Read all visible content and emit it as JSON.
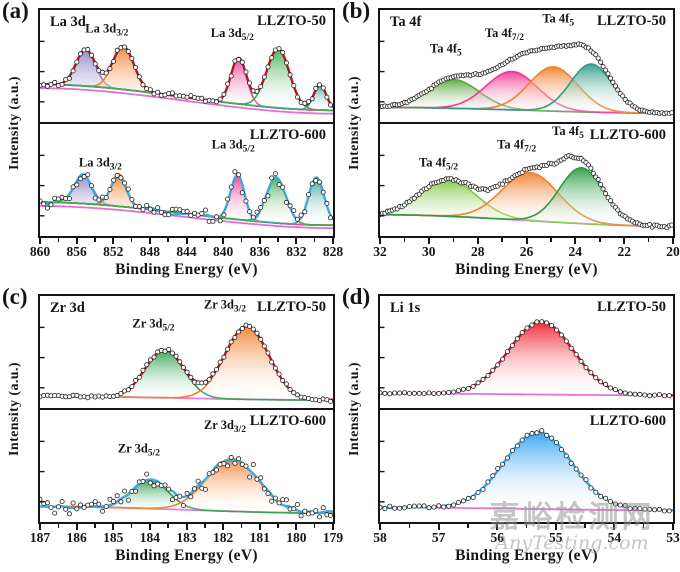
{
  "watermark": {
    "line1": "嘉峪检测网",
    "line2": "AnyTesting.com"
  },
  "samples": [
    "LLZTO-50",
    "LLZTO-600"
  ],
  "chart_data": [
    {
      "type": "area",
      "panel_letter": "(a)",
      "core_label": "La 3d",
      "xlabel": "Binding Energy (eV)",
      "ylabel": "Intensity (a.u.)",
      "x_range": [
        860,
        828
      ],
      "x_ticks": [
        860,
        856,
        852,
        848,
        844,
        840,
        836,
        832,
        828
      ],
      "subpanels": [
        {
          "sample": "LLZTO-50",
          "envelope_color": "#b01620",
          "envelope_wiggle": 0.004,
          "point_noise": 0.016,
          "point_step": 3,
          "baselines": [
            {
              "color": "#4f9d49",
              "start": 0.34,
              "end": 0.07
            },
            {
              "color": "#e46ed6",
              "start": 0.3,
              "end": 0.035
            }
          ],
          "peaks": [
            {
              "center": 855.0,
              "sigma": 1.05,
              "amp": 0.38,
              "color": "#8d84c8"
            },
            {
              "center": 850.9,
              "sigma": 1.15,
              "amp": 0.45,
              "color": "#f28130"
            },
            {
              "center": 838.3,
              "sigma": 0.85,
              "amp": 0.48,
              "color": "#f03a94"
            },
            {
              "center": 829.4,
              "sigma": 0.7,
              "amp": 0.26,
              "color": "#2aa18e"
            },
            {
              "center": 834.0,
              "sigma": 1.25,
              "amp": 0.62,
              "color": "#3fae4c"
            }
          ],
          "annotations": [
            {
              "x": 852.7,
              "y": 0.8,
              "main": "La 3d",
              "sub": "3/2"
            },
            {
              "x": 839.0,
              "y": 0.76,
              "main": "La 3d",
              "sub": "5/2"
            }
          ]
        },
        {
          "sample": "LLZTO-600",
          "envelope_color": "#41a8d9",
          "envelope_wiggle": 0.035,
          "point_noise": 0.05,
          "point_step": 3,
          "baselines": [
            {
              "color": "#4f9d49",
              "start": 0.3,
              "end": 0.06
            },
            {
              "color": "#e46ed6",
              "start": 0.26,
              "end": 0.03
            }
          ],
          "peaks": [
            {
              "center": 855.3,
              "sigma": 1.0,
              "amp": 0.3,
              "color": "#8d84c8"
            },
            {
              "center": 851.4,
              "sigma": 0.85,
              "amp": 0.34,
              "color": "#f28130"
            },
            {
              "center": 838.4,
              "sigma": 0.75,
              "amp": 0.46,
              "color": "#f03a94"
            },
            {
              "center": 829.8,
              "sigma": 0.85,
              "amp": 0.5,
              "color": "#2aa18e"
            },
            {
              "center": 834.2,
              "sigma": 1.05,
              "amp": 0.48,
              "color": "#3fae4c"
            }
          ],
          "annotations": [
            {
              "x": 853.4,
              "y": 0.62,
              "main": "La 3d",
              "sub": "3/2"
            },
            {
              "x": 838.9,
              "y": 0.78,
              "main": "La 3d",
              "sub": "5/2"
            }
          ]
        }
      ]
    },
    {
      "type": "area",
      "panel_letter": "(b)",
      "core_label": "Ta 4f",
      "xlabel": "Binding Energy (eV)",
      "ylabel": "Intensity (a.u.)",
      "x_range": [
        32,
        20
      ],
      "x_ticks": [
        32,
        30,
        28,
        26,
        24,
        22,
        20
      ],
      "subpanels": [
        {
          "sample": "LLZTO-50",
          "envelope_color": "#b01620",
          "envelope_wiggle": 0.004,
          "point_noise": 0.007,
          "point_step": 2,
          "baselines": [
            {
              "color": "#e46ed6",
              "start": 0.1,
              "end": 0.04
            }
          ],
          "peaks": [
            {
              "center": 29.0,
              "sigma": 1.05,
              "amp": 0.3,
              "color": "#57a83c"
            },
            {
              "center": 26.6,
              "sigma": 1.05,
              "amp": 0.4,
              "color": "#f03a94"
            },
            {
              "center": 24.9,
              "sigma": 1.0,
              "amp": 0.46,
              "color": "#f28130"
            },
            {
              "center": 23.35,
              "sigma": 0.85,
              "amp": 0.5,
              "color": "#2f9e85"
            }
          ],
          "annotations": [
            {
              "x": 29.3,
              "y": 0.62,
              "main": "Ta 4f",
              "sub": "5"
            },
            {
              "x": 26.9,
              "y": 0.76,
              "main": "Ta 4f",
              "sub": "7/2"
            },
            {
              "x": 24.7,
              "y": 0.89,
              "main": "Ta 4f",
              "sub": "5"
            }
          ]
        },
        {
          "sample": "LLZTO-600",
          "envelope_wiggle": 0.012,
          "envelope_color": "#41a8d9",
          "point_noise": 0.01,
          "point_step": 2,
          "baselines": [
            {
              "color": "#e46ed6",
              "start": 0.17,
              "end": 0.05
            }
          ],
          "peaks": [
            {
              "center": 29.2,
              "sigma": 1.15,
              "amp": 0.38,
              "color": "#7fc93e"
            },
            {
              "center": 25.85,
              "sigma": 1.15,
              "amp": 0.5,
              "color": "#f28130"
            },
            {
              "center": 23.75,
              "sigma": 0.9,
              "amp": 0.58,
              "color": "#2d9c43"
            }
          ],
          "annotations": [
            {
              "x": 29.6,
              "y": 0.62,
              "main": "Ta 4f",
              "sub": "5/2"
            },
            {
              "x": 26.4,
              "y": 0.78,
              "main": "Ta 4f",
              "sub": "7/2"
            },
            {
              "x": 24.3,
              "y": 0.91,
              "main": "Ta 4f",
              "sub": "5"
            }
          ]
        }
      ]
    },
    {
      "type": "area",
      "panel_letter": "(c)",
      "core_label": "Zr 3d",
      "xlabel": "Binding Energy (eV)",
      "ylabel": "Intensity (a.u.)",
      "x_range": [
        187,
        179
      ],
      "x_ticks": [
        187,
        186,
        185,
        184,
        183,
        182,
        181,
        180,
        179
      ],
      "subpanels": [
        {
          "sample": "LLZTO-50",
          "envelope_color": "#b01620",
          "envelope_wiggle": 0.003,
          "point_noise": 0.012,
          "point_step": 3,
          "baselines": [
            {
              "color": "#e46ed6",
              "start": 0.07,
              "end": 0.03
            }
          ],
          "peaks": [
            {
              "center": 183.6,
              "sigma": 0.52,
              "amp": 0.5,
              "color": "#2f9e4f"
            },
            {
              "center": 181.35,
              "sigma": 0.6,
              "amp": 0.76,
              "color": "#f28130"
            }
          ],
          "annotations": [
            {
              "x": 183.9,
              "y": 0.72,
              "main": "Zr 3d",
              "sub": "5/2"
            },
            {
              "x": 181.95,
              "y": 0.89,
              "main": "Zr 3d",
              "sub": "3/2"
            }
          ]
        },
        {
          "sample": "LLZTO-600",
          "envelope_color": "#41a8d9",
          "envelope_wiggle": 0.03,
          "point_noise": 0.065,
          "point_step": 3,
          "baselines": [
            {
              "color": "#e46ed6",
              "start": 0.11,
              "end": 0.04
            }
          ],
          "peaks": [
            {
              "center": 184.0,
              "sigma": 0.5,
              "amp": 0.3,
              "color": "#2f9e4f"
            },
            {
              "center": 181.75,
              "sigma": 0.7,
              "amp": 0.55,
              "color": "#f28130"
            }
          ],
          "annotations": [
            {
              "x": 184.3,
              "y": 0.62,
              "main": "Zr 3d",
              "sub": "5/2"
            },
            {
              "x": 181.95,
              "y": 0.83,
              "main": "Zr 3d",
              "sub": "3/2"
            }
          ]
        }
      ]
    },
    {
      "type": "area",
      "panel_letter": "(d)",
      "core_label": "Li 1s",
      "xlabel": "Binding Energy (eV)",
      "ylabel": "Intensity (a.u.)",
      "x_range": [
        58,
        53
      ],
      "x_ticks": [
        58,
        57,
        56,
        55,
        54,
        53
      ],
      "subpanels": [
        {
          "sample": "LLZTO-50",
          "envelope_color": "#c21424",
          "envelope_wiggle": 0,
          "point_noise": 0.006,
          "point_step": 4,
          "baselines": [
            {
              "color": "#e46ed6",
              "start": 0.1,
              "end": 0.08
            }
          ],
          "peaks": [
            {
              "center": 55.25,
              "sigma": 0.55,
              "amp": 0.76,
              "color": "#f2192b"
            }
          ],
          "annotations": []
        },
        {
          "sample": "LLZTO-600",
          "envelope_color": "#2ea7e6",
          "envelope_wiggle": 0.006,
          "point_noise": 0.012,
          "point_step": 4,
          "baselines": [
            {
              "color": "#e46ed6",
              "start": 0.1,
              "end": 0.07
            }
          ],
          "peaks": [
            {
              "center": 55.3,
              "sigma": 0.58,
              "amp": 0.8,
              "color": "#2aa3ef"
            }
          ],
          "annotations": []
        }
      ]
    }
  ]
}
